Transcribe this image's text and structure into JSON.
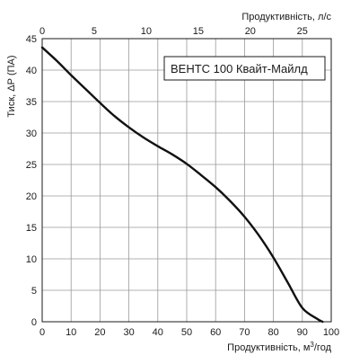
{
  "chart_data": {
    "type": "line",
    "ylabel": "Тиск, ΔР (ПА)",
    "xlabel_bottom_prefix": "Продуктивність, м",
    "xlabel_bottom_sup": "3",
    "xlabel_bottom_suffix": "/год",
    "xlabel_top": "Продуктивність, л/с",
    "xlim": [
      0,
      100
    ],
    "ylim": [
      0,
      45
    ],
    "xlim_top": [
      0,
      27.78
    ],
    "x_ticks": [
      0,
      10,
      20,
      30,
      40,
      50,
      60,
      70,
      80,
      90,
      100
    ],
    "y_ticks": [
      0,
      5,
      10,
      15,
      20,
      25,
      30,
      35,
      40,
      45
    ],
    "x_ticks_top": [
      0,
      5,
      10,
      15,
      20,
      25
    ],
    "grid": true,
    "legend_position": "top-right",
    "series": [
      {
        "name": "ВЕНТС 100 Квайт-Майлд",
        "x": [
          0,
          5,
          10,
          15,
          20,
          25,
          30,
          35,
          40,
          45,
          50,
          55,
          60,
          65,
          70,
          75,
          80,
          85,
          90,
          95,
          97
        ],
        "y": [
          43.6,
          41.5,
          39.2,
          37.0,
          34.8,
          32.7,
          30.9,
          29.3,
          27.9,
          26.6,
          25.1,
          23.3,
          21.4,
          19.2,
          16.7,
          13.7,
          10.2,
          6.2,
          2.2,
          0.5,
          0
        ]
      }
    ]
  }
}
